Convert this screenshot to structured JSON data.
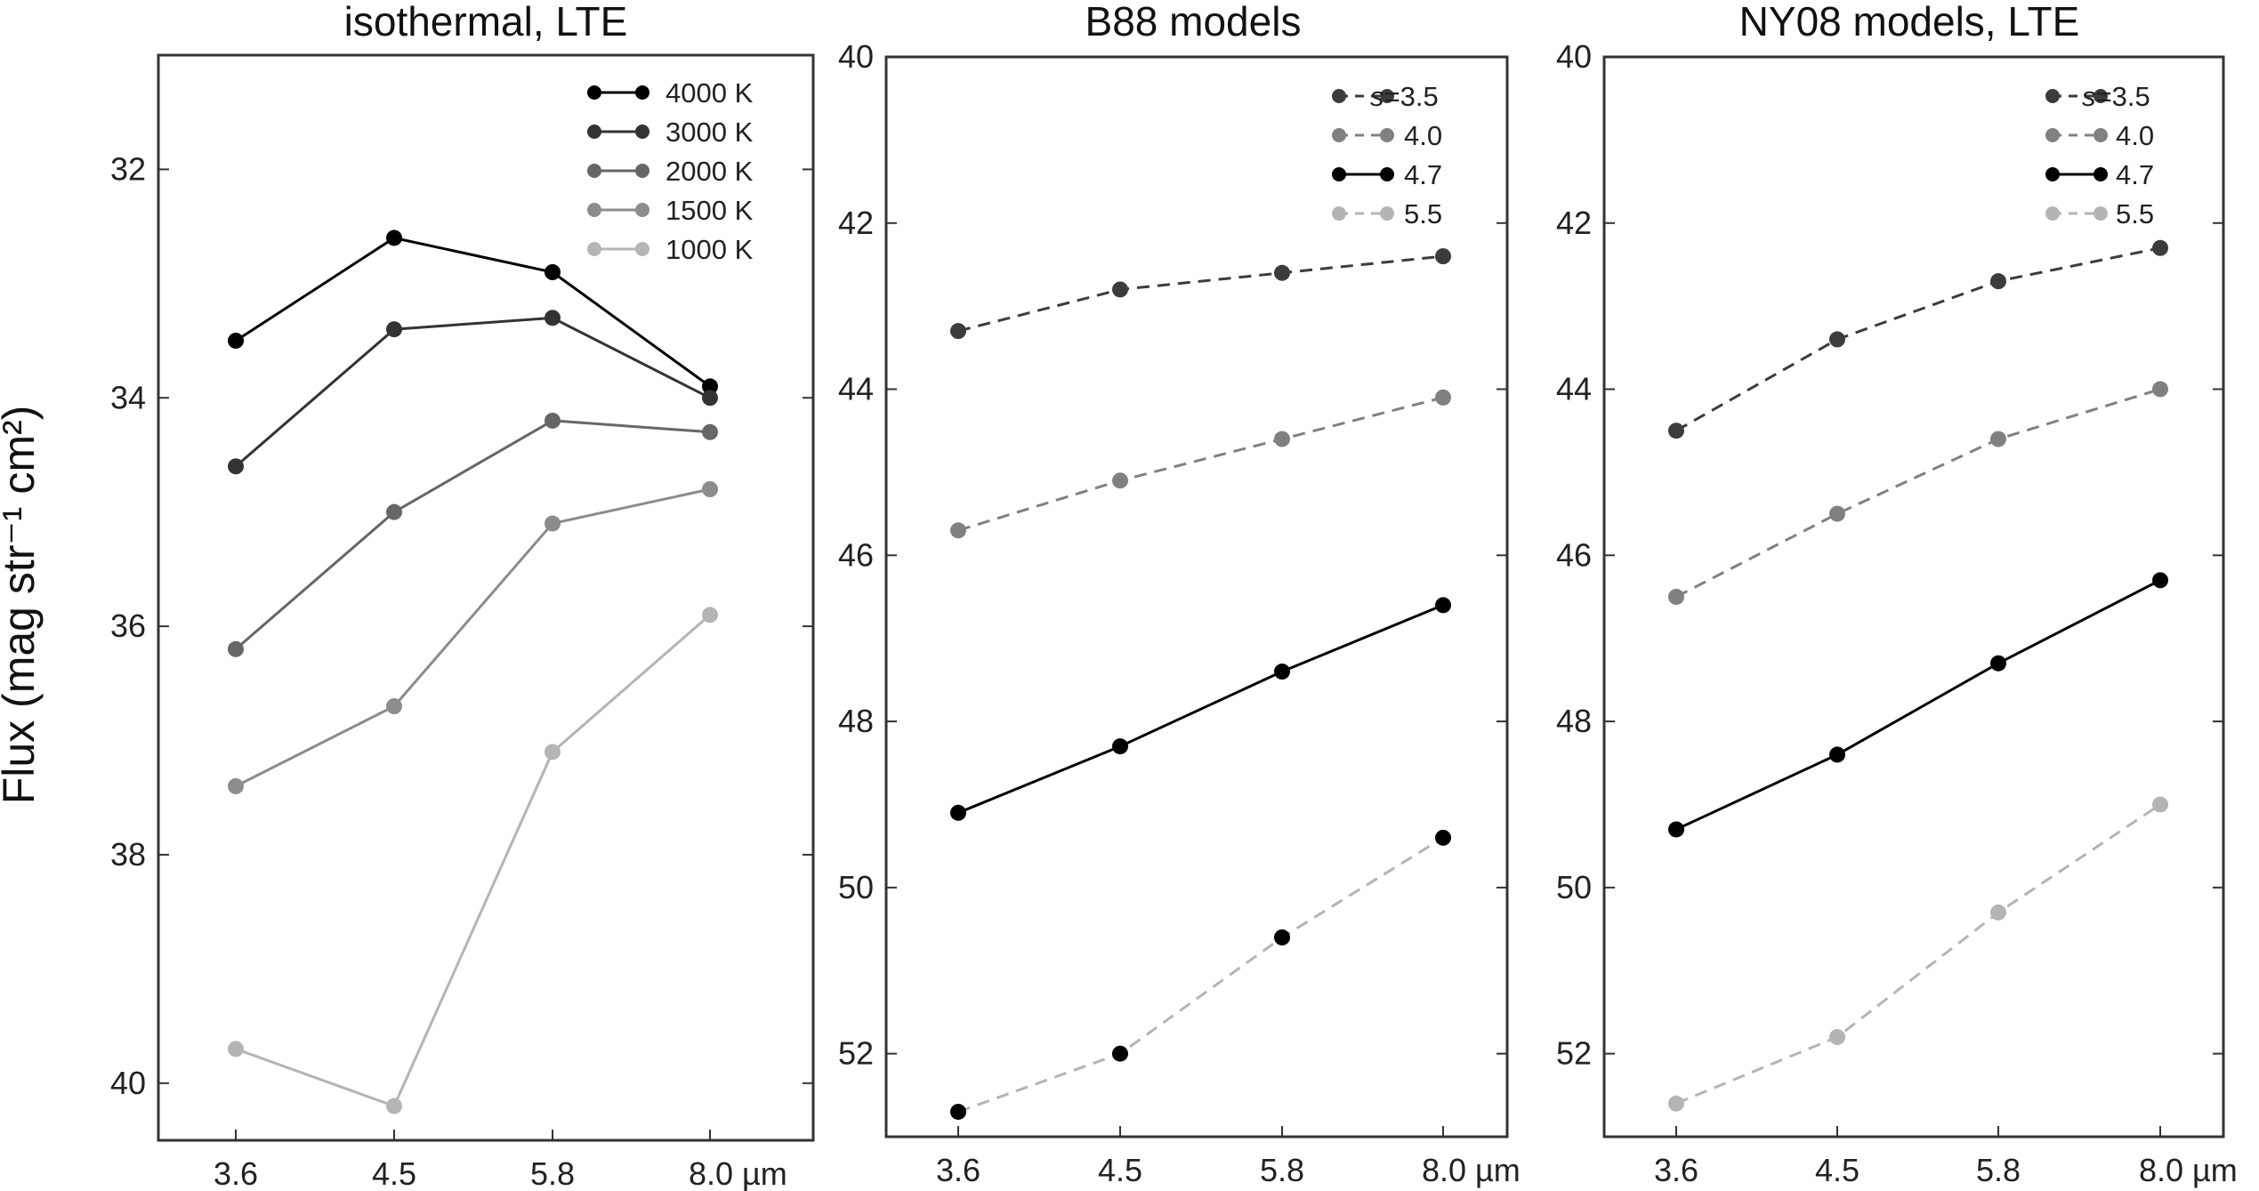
{
  "chart_data": [
    {
      "type": "line",
      "title": "isothermal, LTE",
      "ylabel": "Flux (mag str⁻¹ cm²)",
      "xlabel": "",
      "categories": [
        "3.6",
        "4.5",
        "5.8",
        "8.0 µm"
      ],
      "ylim": [
        31,
        40.5
      ],
      "y_inverted": true,
      "yticks": [
        32,
        34,
        36,
        38,
        40
      ],
      "legend_position": "top-right",
      "series": [
        {
          "name": "4000 K",
          "color": "#000000",
          "dashed": false,
          "values": [
            33.5,
            32.6,
            32.9,
            33.9
          ]
        },
        {
          "name": "3000 K",
          "color": "#333333",
          "dashed": false,
          "values": [
            34.6,
            33.4,
            33.3,
            34.0
          ]
        },
        {
          "name": "2000 K",
          "color": "#666666",
          "dashed": false,
          "values": [
            36.2,
            35.0,
            34.2,
            34.3
          ]
        },
        {
          "name": "1500 K",
          "color": "#8c8c8c",
          "dashed": false,
          "values": [
            37.4,
            36.7,
            35.1,
            34.8
          ]
        },
        {
          "name": "1000 K",
          "color": "#b4b4b4",
          "dashed": false,
          "values": [
            39.7,
            40.2,
            37.1,
            35.9
          ]
        }
      ]
    },
    {
      "type": "line",
      "title": "B88 models",
      "xlabel": "",
      "ylabel": "",
      "categories": [
        "3.6",
        "4.5",
        "5.8",
        "8.0 µm"
      ],
      "ylim": [
        40,
        53
      ],
      "y_inverted": true,
      "yticks": [
        40,
        42,
        44,
        46,
        48,
        50,
        52
      ],
      "legend_position": "top-right",
      "series": [
        {
          "name": "s=3.5",
          "prefix": "s",
          "suffix": "=3.5",
          "color": "#3c3c3c",
          "dashed": true,
          "values": [
            43.3,
            42.8,
            42.6,
            42.4
          ]
        },
        {
          "name": "4.0",
          "color": "#808080",
          "dashed": true,
          "values": [
            45.7,
            45.1,
            44.6,
            44.1
          ]
        },
        {
          "name": "4.7",
          "color": "#000000",
          "dashed": false,
          "values": [
            49.1,
            48.3,
            47.4,
            46.6
          ]
        },
        {
          "name": "5.5",
          "color": "#b4b4b4",
          "dashed": true,
          "values": [
            52.7,
            52.0,
            50.6,
            49.4
          ]
        }
      ],
      "notes": "The 5.5 series markers are drawn in black in the panel even though the legend entry is light gray."
    },
    {
      "type": "line",
      "title": "NY08 models, LTE",
      "xlabel": "",
      "ylabel": "",
      "categories": [
        "3.6",
        "4.5",
        "5.8",
        "8.0 µm"
      ],
      "ylim": [
        40,
        53
      ],
      "y_inverted": true,
      "yticks": [
        40,
        42,
        44,
        46,
        48,
        50,
        52
      ],
      "legend_position": "top-right",
      "series": [
        {
          "name": "s=3.5",
          "prefix": "s",
          "suffix": "=3.5",
          "color": "#3c3c3c",
          "dashed": true,
          "values": [
            44.5,
            43.4,
            42.7,
            42.3
          ]
        },
        {
          "name": "4.0",
          "color": "#808080",
          "dashed": true,
          "values": [
            46.5,
            45.5,
            44.6,
            44.0
          ]
        },
        {
          "name": "4.7",
          "color": "#000000",
          "dashed": false,
          "values": [
            49.3,
            48.4,
            47.3,
            46.3
          ]
        },
        {
          "name": "5.5",
          "color": "#b4b4b4",
          "dashed": true,
          "values": [
            52.6,
            51.8,
            50.3,
            49.0
          ]
        }
      ]
    }
  ],
  "colors": {
    "axes": "#333333",
    "text": "#222222",
    "background": "#ffffff"
  }
}
